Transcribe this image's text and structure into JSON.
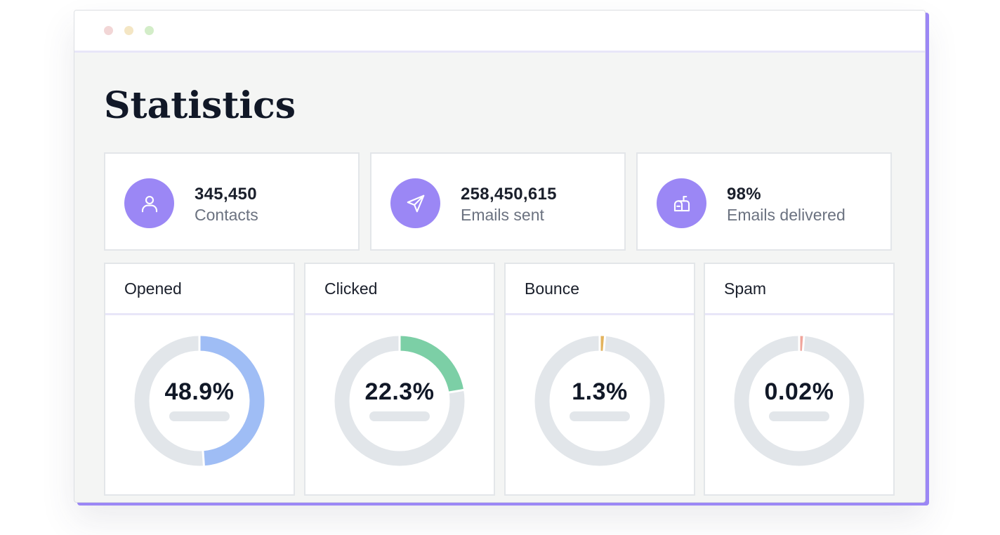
{
  "window": {
    "controls": [
      {
        "name": "close",
        "color": "#f2d6d6"
      },
      {
        "name": "minimize",
        "color": "#f4e6c4"
      },
      {
        "name": "maximize",
        "color": "#d3edc8"
      }
    ]
  },
  "page": {
    "title": "Statistics"
  },
  "stats": [
    {
      "value": "345,450",
      "label": "Contacts",
      "icon": "user-icon"
    },
    {
      "value": "258,450,615",
      "label": "Emails sent",
      "icon": "paper-plane-icon"
    },
    {
      "value": "98%",
      "label": "Emails delivered",
      "icon": "mailbox-icon"
    }
  ],
  "metrics": [
    {
      "title": "Opened",
      "value_label": "48.9%",
      "percent": 48.9,
      "color": "#9fbdf5"
    },
    {
      "title": "Clicked",
      "value_label": "22.3%",
      "percent": 22.3,
      "color": "#7ccfa6"
    },
    {
      "title": "Bounce",
      "value_label": "1.3%",
      "percent": 1.3,
      "color": "#e3b35d"
    },
    {
      "title": "Spam",
      "value_label": "0.02%",
      "percent": 0.02,
      "color": "#f0a49b"
    }
  ],
  "colors": {
    "accent": "#9b87f5",
    "track": "#e2e6ea"
  }
}
